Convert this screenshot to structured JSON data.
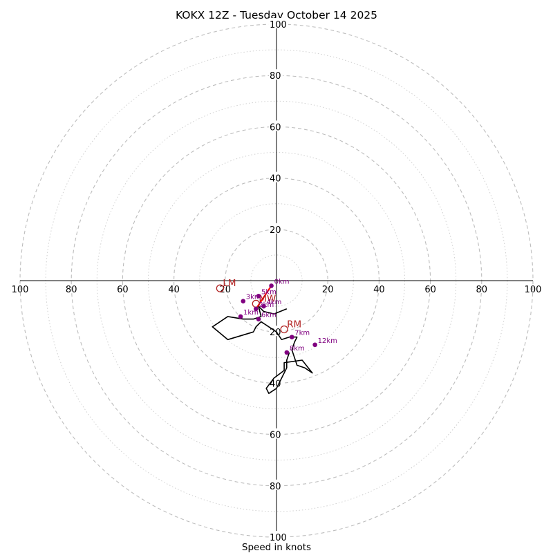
{
  "chart_data": {
    "type": "hodograph",
    "title": "KOKX 12Z - Tuesday October 14 2025",
    "xlabel": "Speed in knots",
    "units": "knots",
    "max_speed": 100,
    "major_rings": [
      20,
      40,
      60,
      80,
      100
    ],
    "minor_rings": [
      10,
      30,
      50,
      70,
      90
    ],
    "x_tick_labels": [
      "100",
      "80",
      "60",
      "40",
      "20",
      "20",
      "40",
      "60",
      "80",
      "100"
    ],
    "x_tick_values": [
      -100,
      -80,
      -60,
      -40,
      -20,
      20,
      40,
      60,
      80,
      100
    ],
    "y_tick_labels": [
      "100",
      "80",
      "60",
      "40",
      "20",
      "20",
      "40",
      "60",
      "80",
      "100"
    ],
    "y_tick_values": [
      100,
      80,
      60,
      40,
      20,
      -20,
      -40,
      -60,
      -80,
      -100
    ],
    "colors": {
      "trace": "#000000",
      "markers": "#800080",
      "storm_motion": "#b22222",
      "shear_vector": "#ff0000",
      "rings": "#bdbdbd"
    },
    "hodograph_trace": [
      [
        4,
        -11
      ],
      [
        -1,
        -13
      ],
      [
        -5,
        -12
      ],
      [
        -7,
        -10
      ],
      [
        -6,
        -14
      ],
      [
        -9,
        -15
      ],
      [
        -13,
        -15
      ],
      [
        -19,
        -14
      ],
      [
        -25,
        -18
      ],
      [
        -19,
        -23
      ],
      [
        -9,
        -20
      ],
      [
        -8,
        -18
      ],
      [
        -6,
        -16
      ],
      [
        -3,
        -18
      ],
      [
        0,
        -20
      ],
      [
        2,
        -23
      ],
      [
        5,
        -22
      ],
      [
        8,
        -22
      ],
      [
        7,
        -24
      ],
      [
        6,
        -27
      ],
      [
        8,
        -33
      ],
      [
        11,
        -34
      ],
      [
        14,
        -36
      ],
      [
        10,
        -31
      ],
      [
        3,
        -32
      ],
      [
        3,
        -35
      ],
      [
        -1,
        -38
      ],
      [
        -4,
        -42
      ],
      [
        -3,
        -44
      ],
      [
        0,
        -42
      ],
      [
        4,
        -34
      ],
      [
        4,
        -31
      ],
      [
        5,
        -28
      ]
    ],
    "height_markers": [
      {
        "label": "0km",
        "u": -2,
        "v": -2
      },
      {
        "label": "1km",
        "u": -14,
        "v": -14
      },
      {
        "label": "2km",
        "u": -8,
        "v": -11
      },
      {
        "label": "3km",
        "u": -13,
        "v": -8
      },
      {
        "label": "4km",
        "u": -5,
        "v": -10
      },
      {
        "label": "5km",
        "u": -7,
        "v": -6
      },
      {
        "label": "6km",
        "u": -7,
        "v": -15
      },
      {
        "label": "7km",
        "u": 6,
        "v": -22
      },
      {
        "label": "8km",
        "u": 4,
        "v": -28
      },
      {
        "label": "12km",
        "u": 15,
        "v": -25
      }
    ],
    "storm_motions": [
      {
        "label": "LM",
        "u": -22,
        "v": -3
      },
      {
        "label": "RM",
        "u": 3,
        "v": -19
      },
      {
        "label": "MW",
        "u": -8,
        "v": -9
      }
    ],
    "shear_vector": {
      "from": [
        -2,
        -2
      ],
      "to": [
        -8,
        -11
      ]
    }
  }
}
